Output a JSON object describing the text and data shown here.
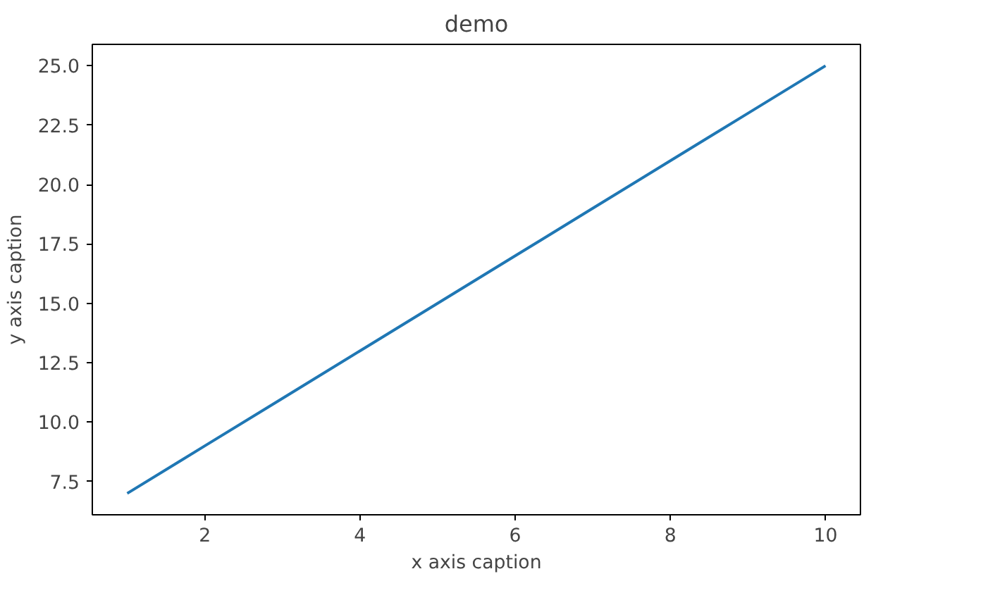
{
  "chart_data": {
    "type": "line",
    "title": "demo",
    "xlabel": "x axis caption",
    "ylabel": "y axis caption",
    "x": [
      1,
      2,
      3,
      4,
      5,
      6,
      7,
      8,
      9,
      10
    ],
    "series": [
      {
        "color": "#1f77b4",
        "values": [
          7,
          9,
          11,
          13,
          15,
          17,
          19,
          21,
          23,
          25
        ]
      }
    ],
    "xlim": [
      0.55,
      10.45
    ],
    "xticks": [
      2,
      4,
      6,
      8,
      10
    ],
    "ylim": [
      6.1,
      25.9
    ],
    "yticks": [
      {
        "value": 7.5,
        "label": "7.5"
      },
      {
        "value": 10,
        "label": "10.0"
      },
      {
        "value": 12.5,
        "label": "12.5"
      },
      {
        "value": 15,
        "label": "15.0"
      },
      {
        "value": 17.5,
        "label": "17.5"
      },
      {
        "value": 20,
        "label": "20.0"
      },
      {
        "value": 22.5,
        "label": "22.5"
      },
      {
        "value": 25,
        "label": "25.0"
      }
    ],
    "grid": false
  }
}
